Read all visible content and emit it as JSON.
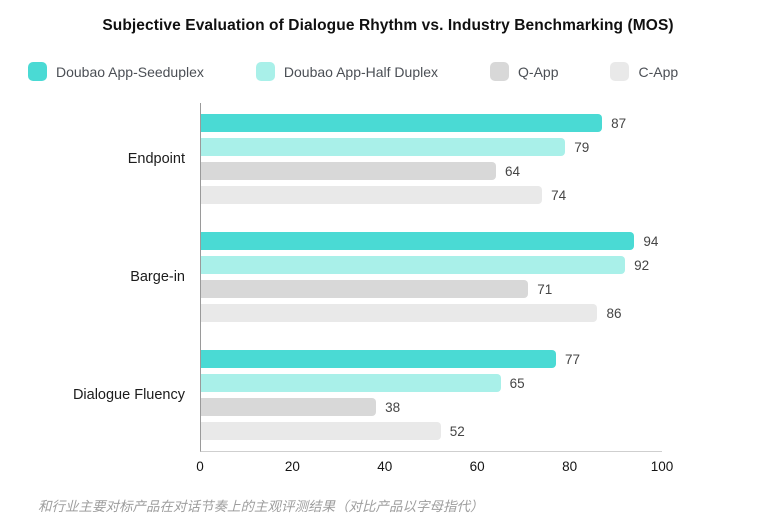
{
  "title": "Subjective Evaluation of Dialogue Rhythm vs. Industry Benchmarking (MOS)",
  "caption": "和行业主要对标产品在对话节奏上的主观评测结果（对比产品以字母指代）",
  "chart_data": {
    "type": "bar",
    "orientation": "horizontal",
    "title": "Subjective Evaluation of Dialogue Rhythm vs. Industry Benchmarking (MOS)",
    "categories": [
      "Endpoint",
      "Barge-in",
      "Dialogue Fluency"
    ],
    "series": [
      {
        "name": "Doubao App-Seeduplex",
        "color": "#4ADAD4",
        "values": [
          87,
          94,
          77
        ]
      },
      {
        "name": "Doubao App-Half Duplex",
        "color": "#A9F0E9",
        "values": [
          79,
          92,
          65
        ]
      },
      {
        "name": "Q-App",
        "color": "#D8D8D8",
        "values": [
          64,
          71,
          38
        ]
      },
      {
        "name": "C-App",
        "color": "#E9E9E9",
        "values": [
          74,
          86,
          52
        ]
      }
    ],
    "xlim": [
      0,
      100
    ],
    "x_ticks": [
      0,
      20,
      40,
      60,
      80,
      100
    ],
    "legend_position": "top",
    "grid": false,
    "axis_line_color": "#9a9a9a",
    "bottom_line_color": "#cfcfcf"
  }
}
